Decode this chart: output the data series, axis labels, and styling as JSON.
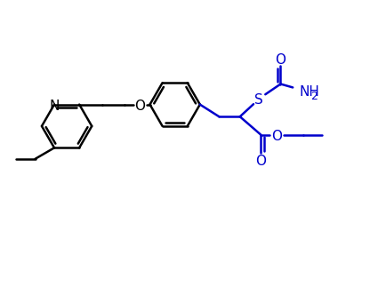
{
  "background_color": "#ffffff",
  "black_color": "#000000",
  "blue_color": "#0000cc",
  "line_width": 1.8,
  "font_size_label": 11,
  "fig_width": 4.16,
  "fig_height": 3.23,
  "dpi": 100,
  "xlim": [
    0,
    10.5
  ],
  "ylim": [
    0,
    8
  ]
}
